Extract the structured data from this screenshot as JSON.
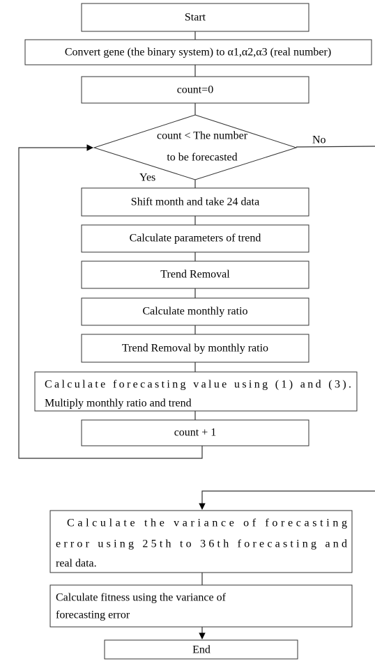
{
  "nodes": [
    {
      "lines": [
        "Start"
      ]
    },
    {
      "lines": [
        "Convert gene (the binary system) to α1,α2,α3 (real number)"
      ]
    },
    {
      "lines": [
        "count=0"
      ]
    },
    {
      "lines": [
        "count < The number",
        "to be forecasted"
      ]
    },
    {
      "lines": [
        "Shift month and take 24 data"
      ]
    },
    {
      "lines": [
        "Calculate parameters of trend"
      ]
    },
    {
      "lines": [
        "Trend Removal"
      ]
    },
    {
      "lines": [
        "Calculate monthly ratio"
      ]
    },
    {
      "lines": [
        "Trend Removal by monthly ratio"
      ]
    },
    {
      "lines": [
        "Calculate forecasting value using (1) and (3).",
        "Multiply monthly ratio and trend"
      ]
    },
    {
      "lines": [
        "count + 1"
      ]
    },
    {
      "lines": [
        "Calculate the variance of forecasting",
        "error using 25th to 36th forecasting and",
        "real data."
      ]
    },
    {
      "lines": [
        "Calculate fitness using the variance of",
        "forecasting error"
      ]
    },
    {
      "lines": [
        "End"
      ]
    }
  ],
  "edge_labels": {
    "no": "No",
    "yes": "Yes"
  }
}
